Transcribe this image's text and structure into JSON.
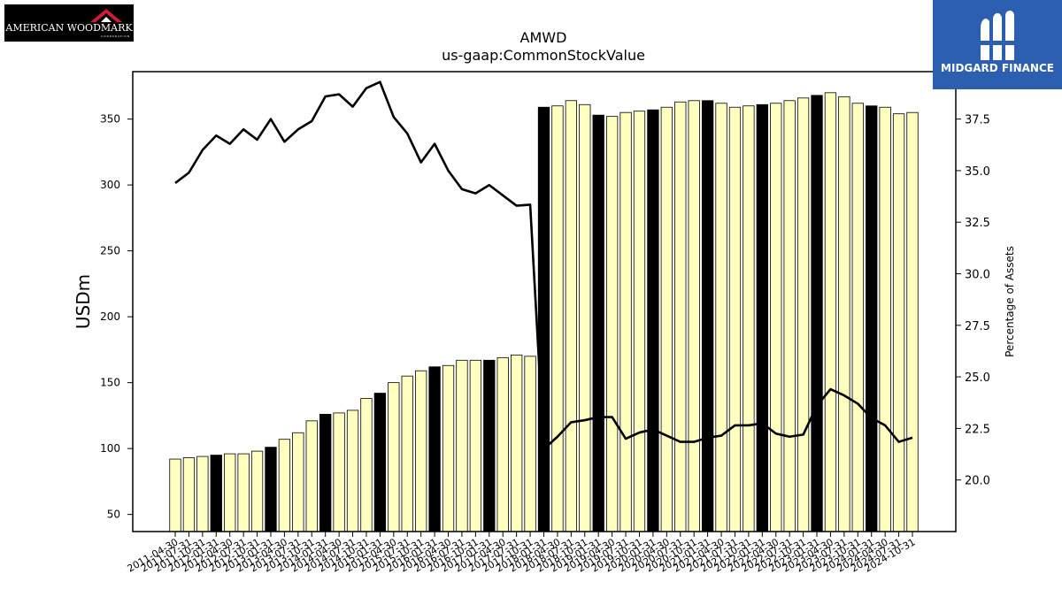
{
  "chart_data": {
    "type": "bar",
    "title": "AMWD",
    "subtitle": "us-gaap:CommonStockValue",
    "ylabel": "USDm",
    "y2label": "Percentage of Assets",
    "ylim": [
      37,
      386
    ],
    "y2lim": [
      17.5,
      39.8
    ],
    "yticks": [
      50,
      100,
      150,
      200,
      250,
      300,
      350
    ],
    "y2ticks": [
      20.0,
      22.5,
      25.0,
      27.5,
      30.0,
      32.5,
      35.0,
      37.5
    ],
    "colors": {
      "bar": "#ffffc0",
      "bar_highlight": "#000000",
      "line": "#000000"
    },
    "categories": [
      "2011-04-30",
      "2011-07-31",
      "2011-10-31",
      "2012-01-31",
      "2012-04-30",
      "2012-07-31",
      "2012-10-31",
      "2013-01-31",
      "2013-04-30",
      "2013-07-31",
      "2013-10-31",
      "2014-01-31",
      "2014-04-30",
      "2014-07-31",
      "2014-10-31",
      "2015-01-31",
      "2015-04-30",
      "2015-07-31",
      "2015-10-31",
      "2016-01-31",
      "2016-04-30",
      "2016-07-31",
      "2016-10-31",
      "2017-01-31",
      "2017-04-30",
      "2017-07-31",
      "2017-10-31",
      "2018-01-31",
      "2018-04-30",
      "2018-07-31",
      "2018-10-31",
      "2019-01-31",
      "2019-04-30",
      "2019-07-31",
      "2019-10-31",
      "2020-01-31",
      "2020-04-30",
      "2020-07-31",
      "2020-10-31",
      "2021-01-31",
      "2021-04-30",
      "2021-07-31",
      "2021-10-31",
      "2022-01-31",
      "2022-04-30",
      "2022-07-31",
      "2022-10-31",
      "2023-01-31",
      "2023-04-30",
      "2023-07-31",
      "2023-10-31",
      "2024-01-31",
      "2024-04-30",
      "2024-07-31",
      "2024-10-31"
    ],
    "series": [
      {
        "type": "bar",
        "values": [
          92,
          93,
          94,
          95,
          96,
          96,
          98,
          101,
          107,
          112,
          121,
          126,
          127,
          129,
          138,
          142,
          150,
          155,
          159,
          162,
          163,
          167,
          167,
          167,
          169,
          171,
          170,
          359,
          360,
          364,
          361,
          353,
          352,
          355,
          356,
          357,
          359,
          363,
          364,
          364,
          362,
          359,
          360,
          361,
          362,
          364,
          366,
          368,
          370,
          367,
          362,
          360,
          359,
          354,
          355
        ],
        "highlight": [
          false,
          false,
          false,
          true,
          false,
          false,
          false,
          true,
          false,
          false,
          false,
          true,
          false,
          false,
          false,
          true,
          false,
          false,
          false,
          true,
          false,
          false,
          false,
          true,
          false,
          false,
          false,
          true,
          false,
          false,
          false,
          true,
          false,
          false,
          false,
          true,
          false,
          false,
          false,
          true,
          false,
          false,
          false,
          true,
          false,
          false,
          false,
          true,
          false,
          false,
          false,
          true,
          false,
          false,
          false
        ]
      },
      {
        "type": "line",
        "axis": "right",
        "values": [
          34.4,
          34.9,
          36.0,
          36.7,
          36.3,
          37.0,
          36.5,
          37.5,
          36.4,
          37.0,
          37.4,
          38.6,
          38.7,
          38.1,
          39.0,
          39.3,
          37.6,
          36.8,
          35.4,
          36.3,
          35.0,
          34.1,
          33.9,
          34.3,
          33.8,
          33.3,
          33.35,
          21.5,
          22.1,
          22.8,
          22.9,
          23.05,
          23.05,
          22.0,
          22.3,
          22.45,
          22.15,
          21.85,
          21.85,
          22.05,
          22.15,
          22.65,
          22.65,
          22.75,
          22.25,
          22.1,
          22.2,
          23.6,
          24.4,
          24.1,
          23.7,
          23.0,
          22.65,
          21.85,
          22.05
        ]
      }
    ]
  },
  "logos": {
    "left": {
      "name": "AMERICAN WOODMARK",
      "tag": "CORPORATION"
    },
    "right": {
      "name": "MIDGARD FINANCE"
    }
  }
}
